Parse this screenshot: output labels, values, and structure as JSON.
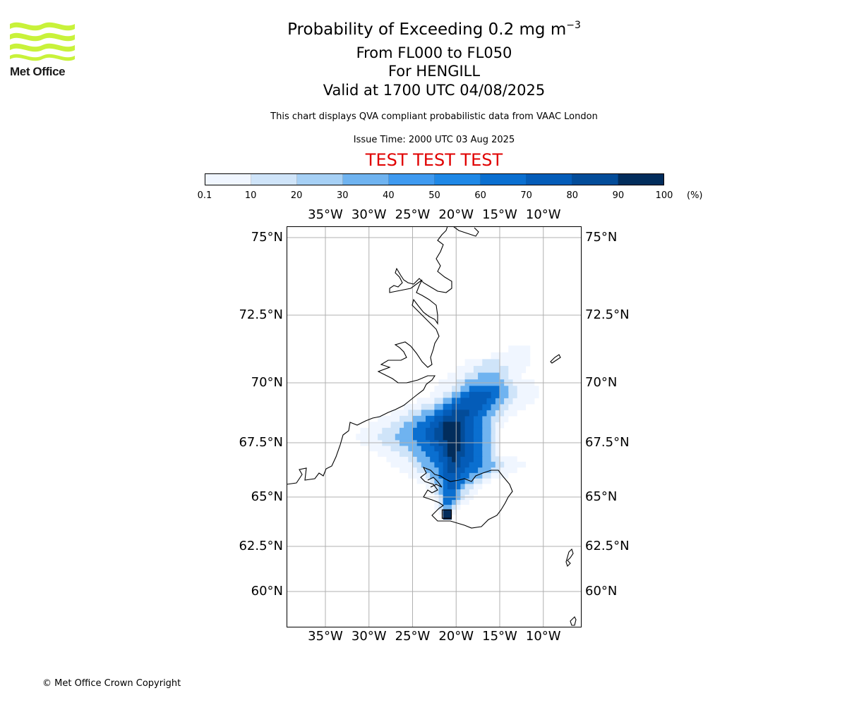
{
  "logo": {
    "text": "Met Office",
    "accent": "#c8f23a"
  },
  "title": {
    "line1_main": "Probability of Exceeding 0.2 mg m",
    "line1_sup": "−3",
    "line2": "From FL000 to FL050",
    "line3": "For HENGILL",
    "line4": "Valid at 1700 UTC 04/08/2025"
  },
  "subtitle": "This chart displays QVA compliant probabilistic data from VAAC London",
  "issue_time": "Issue Time: 2000 UTC 03 Aug 2025",
  "test_banner": "TEST TEST TEST",
  "colorbar": {
    "ticks": [
      "0.1",
      "10",
      "20",
      "30",
      "40",
      "50",
      "60",
      "70",
      "80",
      "90",
      "100"
    ],
    "unit": "(%)",
    "colors": [
      "#f0f6ff",
      "#cfe4f9",
      "#a6d0f5",
      "#6fb3f0",
      "#3f9af0",
      "#1f88e6",
      "#0a6fd0",
      "#045cb8",
      "#034c99",
      "#022d5c"
    ]
  },
  "map": {
    "lon_labels": [
      "35°W",
      "30°W",
      "25°W",
      "20°W",
      "15°W",
      "10°W"
    ],
    "lat_labels": [
      "75°N",
      "72.5°N",
      "70°N",
      "67.5°N",
      "65°N",
      "62.5°N",
      "60°N"
    ]
  },
  "copyright": "© Met Office Crown Copyright",
  "chart_data": {
    "type": "heatmap",
    "lon_ticks": [
      -35,
      -30,
      -25,
      -20,
      -15,
      -10
    ],
    "lat_ticks": [
      75,
      72.5,
      70,
      67.5,
      65,
      62.5,
      60
    ],
    "cell_deg_lon": 0.5,
    "cell_deg_lat": 0.25,
    "probability_bins": [
      0.1,
      10,
      20,
      30,
      40,
      50,
      60,
      70,
      80,
      90,
      100
    ],
    "source_label": "HENGILL",
    "cells": [
      {
        "lat": 71.25,
        "lon": [
          -14,
          -11.5
        ],
        "bin": 0
      },
      {
        "lat": 71.0,
        "lon": [
          -16,
          -11.5
        ],
        "bin": 0
      },
      {
        "lat": 70.75,
        "lon": [
          -19,
          -11.5
        ],
        "bin": 0
      },
      {
        "lat": 70.5,
        "lon": [
          -20,
          -12
        ],
        "bin": 0
      },
      {
        "lat": 70.25,
        "lon": [
          -21,
          -12.5
        ],
        "bin": 0
      },
      {
        "lat": 70.0,
        "lon": [
          -22,
          -11
        ],
        "bin": 0
      },
      {
        "lat": 69.75,
        "lon": [
          -22.5,
          -10.5
        ],
        "bin": 0
      },
      {
        "lat": 69.5,
        "lon": [
          -23,
          -10.5
        ],
        "bin": 0
      },
      {
        "lat": 69.25,
        "lon": [
          -24.5,
          -11
        ],
        "bin": 0
      },
      {
        "lat": 69.0,
        "lon": [
          -26,
          -12
        ],
        "bin": 0
      },
      {
        "lat": 68.75,
        "lon": [
          -27.5,
          -13
        ],
        "bin": 0
      },
      {
        "lat": 68.5,
        "lon": [
          -29,
          -14
        ],
        "bin": 0
      },
      {
        "lat": 68.25,
        "lon": [
          -30,
          -14.5
        ],
        "bin": 0
      },
      {
        "lat": 68.0,
        "lon": [
          -31,
          -15
        ],
        "bin": 0
      },
      {
        "lat": 67.75,
        "lon": [
          -31.5,
          -15
        ],
        "bin": 0
      },
      {
        "lat": 67.5,
        "lon": [
          -31,
          -15
        ],
        "bin": 0
      },
      {
        "lat": 67.25,
        "lon": [
          -30,
          -15
        ],
        "bin": 0
      },
      {
        "lat": 67.0,
        "lon": [
          -29,
          -15
        ],
        "bin": 0
      },
      {
        "lat": 66.75,
        "lon": [
          -28,
          -13
        ],
        "bin": 0
      },
      {
        "lat": 66.5,
        "lon": [
          -27.5,
          -12
        ],
        "bin": 0
      },
      {
        "lat": 66.25,
        "lon": [
          -26.5,
          -13
        ],
        "bin": 0
      },
      {
        "lat": 66.0,
        "lon": [
          -25.5,
          -14
        ],
        "bin": 0
      },
      {
        "lat": 65.75,
        "lon": [
          -24.5,
          -16
        ],
        "bin": 0
      },
      {
        "lat": 65.5,
        "lon": [
          -23.5,
          -17
        ],
        "bin": 0
      },
      {
        "lat": 65.25,
        "lon": [
          -23,
          -17.5
        ],
        "bin": 0
      },
      {
        "lat": 65.0,
        "lon": [
          -22.5,
          -18
        ],
        "bin": 0
      },
      {
        "lat": 64.75,
        "lon": [
          -22.5,
          -18.5
        ],
        "bin": 0
      },
      {
        "lat": 64.5,
        "lon": [
          -22.5,
          -19.5
        ],
        "bin": 0
      },
      {
        "lat": 64.25,
        "lon": [
          -22,
          -20
        ],
        "bin": 0
      },
      {
        "lat": 70.75,
        "lon": [
          -17,
          -15
        ],
        "bin": 1
      },
      {
        "lat": 70.5,
        "lon": [
          -18,
          -14
        ],
        "bin": 1
      },
      {
        "lat": 70.25,
        "lon": [
          -19,
          -14
        ],
        "bin": 1
      },
      {
        "lat": 70.0,
        "lon": [
          -20,
          -13.5
        ],
        "bin": 1
      },
      {
        "lat": 69.75,
        "lon": [
          -20.5,
          -13
        ],
        "bin": 1
      },
      {
        "lat": 69.5,
        "lon": [
          -21.5,
          -13
        ],
        "bin": 1
      },
      {
        "lat": 69.25,
        "lon": [
          -22.5,
          -13.5
        ],
        "bin": 1
      },
      {
        "lat": 69.0,
        "lon": [
          -24,
          -14
        ],
        "bin": 1
      },
      {
        "lat": 68.75,
        "lon": [
          -25.5,
          -14.5
        ],
        "bin": 1
      },
      {
        "lat": 68.5,
        "lon": [
          -26.5,
          -15
        ],
        "bin": 1
      },
      {
        "lat": 68.25,
        "lon": [
          -27.5,
          -15.5
        ],
        "bin": 1
      },
      {
        "lat": 68.0,
        "lon": [
          -28.5,
          -15.5
        ],
        "bin": 1
      },
      {
        "lat": 67.75,
        "lon": [
          -29,
          -15.5
        ],
        "bin": 1
      },
      {
        "lat": 67.5,
        "lon": [
          -28.5,
          -15.5
        ],
        "bin": 1
      },
      {
        "lat": 67.25,
        "lon": [
          -27.5,
          -15.5
        ],
        "bin": 1
      },
      {
        "lat": 67.0,
        "lon": [
          -26.5,
          -15.5
        ],
        "bin": 1
      },
      {
        "lat": 66.75,
        "lon": [
          -25.5,
          -15
        ],
        "bin": 1
      },
      {
        "lat": 66.5,
        "lon": [
          -25,
          -14.5
        ],
        "bin": 1
      },
      {
        "lat": 66.25,
        "lon": [
          -24.5,
          -15
        ],
        "bin": 1
      },
      {
        "lat": 66.0,
        "lon": [
          -23.5,
          -16
        ],
        "bin": 1
      },
      {
        "lat": 65.75,
        "lon": [
          -23,
          -17
        ],
        "bin": 1
      },
      {
        "lat": 65.5,
        "lon": [
          -22.5,
          -18
        ],
        "bin": 1
      },
      {
        "lat": 65.25,
        "lon": [
          -22.5,
          -18.5
        ],
        "bin": 1
      },
      {
        "lat": 65.0,
        "lon": [
          -22,
          -19
        ],
        "bin": 1
      },
      {
        "lat": 64.75,
        "lon": [
          -22,
          -19.5
        ],
        "bin": 1
      },
      {
        "lat": 64.5,
        "lon": [
          -22,
          -20
        ],
        "bin": 1
      },
      {
        "lat": 70.25,
        "lon": [
          -17.5,
          -15
        ],
        "bin": 3
      },
      {
        "lat": 70.0,
        "lon": [
          -19,
          -14.5
        ],
        "bin": 3
      },
      {
        "lat": 69.75,
        "lon": [
          -19.5,
          -14
        ],
        "bin": 3
      },
      {
        "lat": 69.5,
        "lon": [
          -20.5,
          -14
        ],
        "bin": 3
      },
      {
        "lat": 69.25,
        "lon": [
          -21.5,
          -14.5
        ],
        "bin": 3
      },
      {
        "lat": 69.0,
        "lon": [
          -22.5,
          -15
        ],
        "bin": 3
      },
      {
        "lat": 68.75,
        "lon": [
          -24,
          -15.5
        ],
        "bin": 3
      },
      {
        "lat": 68.5,
        "lon": [
          -25,
          -16
        ],
        "bin": 3
      },
      {
        "lat": 68.25,
        "lon": [
          -26,
          -16
        ],
        "bin": 3
      },
      {
        "lat": 68.0,
        "lon": [
          -26.5,
          -16
        ],
        "bin": 3
      },
      {
        "lat": 67.75,
        "lon": [
          -27,
          -16
        ],
        "bin": 3
      },
      {
        "lat": 67.5,
        "lon": [
          -26.5,
          -16
        ],
        "bin": 3
      },
      {
        "lat": 67.25,
        "lon": [
          -25.5,
          -16
        ],
        "bin": 3
      },
      {
        "lat": 67.0,
        "lon": [
          -25,
          -16
        ],
        "bin": 3
      },
      {
        "lat": 66.75,
        "lon": [
          -24.5,
          -16
        ],
        "bin": 3
      },
      {
        "lat": 66.5,
        "lon": [
          -24,
          -15.5
        ],
        "bin": 3
      },
      {
        "lat": 66.25,
        "lon": [
          -23.5,
          -16
        ],
        "bin": 3
      },
      {
        "lat": 66.0,
        "lon": [
          -23,
          -17
        ],
        "bin": 3
      },
      {
        "lat": 65.75,
        "lon": [
          -22.5,
          -18
        ],
        "bin": 3
      },
      {
        "lat": 65.5,
        "lon": [
          -22,
          -19
        ],
        "bin": 3
      },
      {
        "lat": 65.25,
        "lon": [
          -22,
          -19.5
        ],
        "bin": 3
      },
      {
        "lat": 65.0,
        "lon": [
          -21.5,
          -19.5
        ],
        "bin": 3
      },
      {
        "lat": 64.75,
        "lon": [
          -21.5,
          -20
        ],
        "bin": 3
      },
      {
        "lat": 64.5,
        "lon": [
          -21.5,
          -20.5
        ],
        "bin": 3
      },
      {
        "lat": 69.75,
        "lon": [
          -18.5,
          -15
        ],
        "bin": 6
      },
      {
        "lat": 69.5,
        "lon": [
          -19.5,
          -15
        ],
        "bin": 6
      },
      {
        "lat": 69.25,
        "lon": [
          -20.5,
          -15.5
        ],
        "bin": 6
      },
      {
        "lat": 69.0,
        "lon": [
          -21.5,
          -16
        ],
        "bin": 6
      },
      {
        "lat": 68.75,
        "lon": [
          -22.5,
          -16.5
        ],
        "bin": 6
      },
      {
        "lat": 68.5,
        "lon": [
          -23.5,
          -17
        ],
        "bin": 6
      },
      {
        "lat": 68.25,
        "lon": [
          -24.5,
          -17
        ],
        "bin": 6
      },
      {
        "lat": 68.0,
        "lon": [
          -25,
          -17
        ],
        "bin": 6
      },
      {
        "lat": 67.75,
        "lon": [
          -25,
          -17
        ],
        "bin": 6
      },
      {
        "lat": 67.5,
        "lon": [
          -24.5,
          -17
        ],
        "bin": 6
      },
      {
        "lat": 67.25,
        "lon": [
          -24,
          -17
        ],
        "bin": 6
      },
      {
        "lat": 67.0,
        "lon": [
          -23.5,
          -17
        ],
        "bin": 6
      },
      {
        "lat": 66.75,
        "lon": [
          -23,
          -17
        ],
        "bin": 6
      },
      {
        "lat": 66.5,
        "lon": [
          -22.5,
          -17
        ],
        "bin": 6
      },
      {
        "lat": 66.25,
        "lon": [
          -22,
          -17.5
        ],
        "bin": 6
      },
      {
        "lat": 66.0,
        "lon": [
          -22,
          -18.5
        ],
        "bin": 6
      },
      {
        "lat": 65.75,
        "lon": [
          -21.5,
          -19
        ],
        "bin": 6
      },
      {
        "lat": 65.5,
        "lon": [
          -21.5,
          -19.5
        ],
        "bin": 6
      },
      {
        "lat": 65.25,
        "lon": [
          -21.5,
          -20
        ],
        "bin": 6
      },
      {
        "lat": 65.0,
        "lon": [
          -21.5,
          -20
        ],
        "bin": 6
      },
      {
        "lat": 64.75,
        "lon": [
          -21.5,
          -20.5
        ],
        "bin": 6
      },
      {
        "lat": 69.5,
        "lon": [
          -18.5,
          -16
        ],
        "bin": 7
      },
      {
        "lat": 69.25,
        "lon": [
          -19.5,
          -16.5
        ],
        "bin": 7
      },
      {
        "lat": 69.0,
        "lon": [
          -20.5,
          -17
        ],
        "bin": 7
      },
      {
        "lat": 68.75,
        "lon": [
          -21.5,
          -17.5
        ],
        "bin": 7
      },
      {
        "lat": 68.5,
        "lon": [
          -22.5,
          -18
        ],
        "bin": 7
      },
      {
        "lat": 68.25,
        "lon": [
          -23,
          -18
        ],
        "bin": 7
      },
      {
        "lat": 68.0,
        "lon": [
          -23.5,
          -18
        ],
        "bin": 7
      },
      {
        "lat": 67.75,
        "lon": [
          -23.5,
          -18
        ],
        "bin": 7
      },
      {
        "lat": 67.5,
        "lon": [
          -23,
          -18
        ],
        "bin": 7
      },
      {
        "lat": 67.25,
        "lon": [
          -22.5,
          -18
        ],
        "bin": 7
      },
      {
        "lat": 67.0,
        "lon": [
          -22,
          -18
        ],
        "bin": 7
      },
      {
        "lat": 66.75,
        "lon": [
          -22,
          -18
        ],
        "bin": 7
      },
      {
        "lat": 66.5,
        "lon": [
          -21.5,
          -18.5
        ],
        "bin": 7
      },
      {
        "lat": 66.25,
        "lon": [
          -21.5,
          -19
        ],
        "bin": 7
      },
      {
        "lat": 66.0,
        "lon": [
          -21.5,
          -19.5
        ],
        "bin": 7
      },
      {
        "lat": 65.75,
        "lon": [
          -21,
          -20
        ],
        "bin": 7
      },
      {
        "lat": 65.5,
        "lon": [
          -21,
          -20
        ],
        "bin": 7
      },
      {
        "lat": 68.75,
        "lon": [
          -20.5,
          -18.5
        ],
        "bin": 8
      },
      {
        "lat": 68.5,
        "lon": [
          -21.5,
          -19
        ],
        "bin": 8
      },
      {
        "lat": 68.25,
        "lon": [
          -22,
          -19
        ],
        "bin": 8
      },
      {
        "lat": 68.0,
        "lon": [
          -22.5,
          -19
        ],
        "bin": 8
      },
      {
        "lat": 67.75,
        "lon": [
          -22.5,
          -19
        ],
        "bin": 8
      },
      {
        "lat": 67.5,
        "lon": [
          -22,
          -19
        ],
        "bin": 8
      },
      {
        "lat": 67.25,
        "lon": [
          -21.5,
          -19
        ],
        "bin": 8
      },
      {
        "lat": 67.0,
        "lon": [
          -21.5,
          -19
        ],
        "bin": 8
      },
      {
        "lat": 66.75,
        "lon": [
          -21,
          -19.5
        ],
        "bin": 8
      },
      {
        "lat": 66.5,
        "lon": [
          -21,
          -19.5
        ],
        "bin": 8
      },
      {
        "lat": 66.25,
        "lon": [
          -21,
          -20
        ],
        "bin": 8
      },
      {
        "lat": 68.25,
        "lon": [
          -21.5,
          -19.5
        ],
        "bin": 9
      },
      {
        "lat": 68.0,
        "lon": [
          -21.5,
          -19.5
        ],
        "bin": 9
      },
      {
        "lat": 67.75,
        "lon": [
          -21.5,
          -19.5
        ],
        "bin": 9
      },
      {
        "lat": 67.5,
        "lon": [
          -21,
          -19.5
        ],
        "bin": 9
      },
      {
        "lat": 67.25,
        "lon": [
          -21,
          -19.5
        ],
        "bin": 9
      },
      {
        "lat": 67.0,
        "lon": [
          -21,
          -20
        ],
        "bin": 9
      },
      {
        "lat": 66.75,
        "lon": [
          -20.5,
          -20
        ],
        "bin": 9
      },
      {
        "lat": 64.25,
        "lon": [
          -21.5,
          -20.5
        ],
        "bin": 9
      },
      {
        "lat": 64.0,
        "lon": [
          -21.5,
          -20.5
        ],
        "bin": 9
      }
    ]
  }
}
